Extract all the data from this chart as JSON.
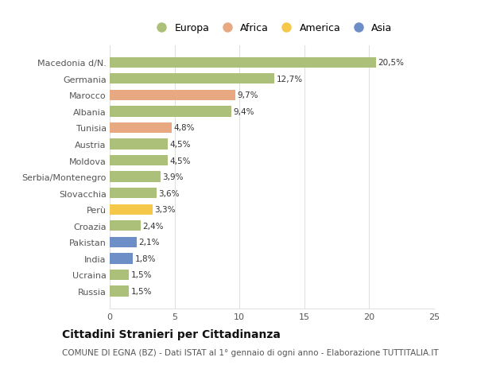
{
  "categories": [
    "Russia",
    "Ucraina",
    "India",
    "Pakistan",
    "Croazia",
    "Perù",
    "Slovacchia",
    "Serbia/Montenegro",
    "Moldova",
    "Austria",
    "Tunisia",
    "Albania",
    "Marocco",
    "Germania",
    "Macedonia d/N."
  ],
  "values": [
    1.5,
    1.5,
    1.8,
    2.1,
    2.4,
    3.3,
    3.6,
    3.9,
    4.5,
    4.5,
    4.8,
    9.4,
    9.7,
    12.7,
    20.5
  ],
  "labels": [
    "1,5%",
    "1,5%",
    "1,8%",
    "2,1%",
    "2,4%",
    "3,3%",
    "3,6%",
    "3,9%",
    "4,5%",
    "4,5%",
    "4,8%",
    "9,4%",
    "9,7%",
    "12,7%",
    "20,5%"
  ],
  "colors": [
    "#adc07a",
    "#adc07a",
    "#6e8ec8",
    "#6e8ec8",
    "#adc07a",
    "#f5c84a",
    "#adc07a",
    "#adc07a",
    "#adc07a",
    "#adc07a",
    "#e8a882",
    "#adc07a",
    "#e8a882",
    "#adc07a",
    "#adc07a"
  ],
  "legend_labels": [
    "Europa",
    "Africa",
    "America",
    "Asia"
  ],
  "legend_colors": [
    "#adc07a",
    "#e8a882",
    "#f5c84a",
    "#6e8ec8"
  ],
  "title": "Cittadini Stranieri per Cittadinanza",
  "subtitle": "COMUNE DI EGNA (BZ) - Dati ISTAT al 1° gennaio di ogni anno - Elaborazione TUTTITALIA.IT",
  "xlim": [
    0,
    25
  ],
  "xticks": [
    0,
    5,
    10,
    15,
    20,
    25
  ],
  "background_color": "#ffffff",
  "bar_height": 0.65,
  "grid_color": "#e0e0e0",
  "title_fontsize": 10,
  "subtitle_fontsize": 7.5,
  "label_fontsize": 7.5,
  "tick_fontsize": 8,
  "legend_fontsize": 9
}
